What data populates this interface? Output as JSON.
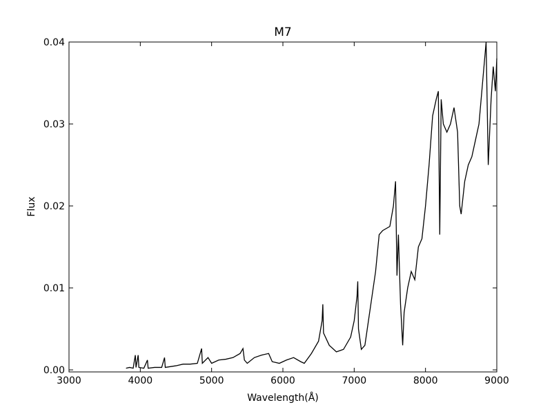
{
  "chart_data": {
    "type": "line",
    "title": "M7",
    "x_label": "Wavelength(Å)",
    "y_label": "Flux",
    "x": [
      3800,
      3850,
      3900,
      3930,
      3940,
      3970,
      3980,
      4050,
      4100,
      4110,
      4200,
      4300,
      4340,
      4350,
      4500,
      4600,
      4700,
      4800,
      4860,
      4870,
      4950,
      5000,
      5100,
      5200,
      5300,
      5400,
      5440,
      5460,
      5500,
      5600,
      5700,
      5800,
      5850,
      5950,
      6050,
      6150,
      6250,
      6300,
      6400,
      6500,
      6550,
      6560,
      6570,
      6650,
      6750,
      6850,
      6950,
      7000,
      7040,
      7050,
      7060,
      7100,
      7150,
      7200,
      7250,
      7300,
      7350,
      7400,
      7500,
      7550,
      7580,
      7600,
      7620,
      7650,
      7680,
      7700,
      7750,
      7800,
      7850,
      7900,
      7950,
      8000,
      8050,
      8100,
      8150,
      8180,
      8200,
      8220,
      8250,
      8300,
      8350,
      8400,
      8450,
      8480,
      8500,
      8550,
      8600,
      8650,
      8700,
      8750,
      8800,
      8850,
      8880,
      8920,
      8950,
      8980,
      9000
    ],
    "series": [
      {
        "name": "M7",
        "color": "#000000",
        "values": [
          0.0002,
          0.0003,
          0.0002,
          0.0018,
          0.0003,
          0.0018,
          0.0003,
          0.0002,
          0.0012,
          0.0002,
          0.0003,
          0.0003,
          0.0015,
          0.0003,
          0.0005,
          0.0007,
          0.0007,
          0.0008,
          0.0026,
          0.0008,
          0.0015,
          0.0008,
          0.0012,
          0.0013,
          0.0015,
          0.002,
          0.0026,
          0.0012,
          0.0008,
          0.0015,
          0.0018,
          0.002,
          0.001,
          0.0008,
          0.0012,
          0.0015,
          0.001,
          0.0008,
          0.002,
          0.0035,
          0.006,
          0.008,
          0.0045,
          0.003,
          0.0022,
          0.0025,
          0.004,
          0.006,
          0.009,
          0.0108,
          0.005,
          0.0025,
          0.003,
          0.006,
          0.009,
          0.012,
          0.0165,
          0.017,
          0.0175,
          0.02,
          0.023,
          0.0115,
          0.0165,
          0.008,
          0.003,
          0.007,
          0.01,
          0.012,
          0.011,
          0.015,
          0.016,
          0.02,
          0.025,
          0.031,
          0.033,
          0.034,
          0.0165,
          0.033,
          0.03,
          0.029,
          0.03,
          0.032,
          0.029,
          0.02,
          0.019,
          0.023,
          0.025,
          0.026,
          0.028,
          0.03,
          0.035,
          0.04,
          0.025,
          0.033,
          0.037,
          0.034,
          0.038
        ]
      }
    ],
    "xlim": [
      3000,
      9000
    ],
    "ylim": [
      -0.00025,
      0.04
    ],
    "xticks": [
      3000,
      4000,
      5000,
      6000,
      7000,
      8000,
      9000
    ],
    "yticks": [
      {
        "value": 0,
        "label": "0.00"
      },
      0.01,
      0.02,
      0.03,
      0.04
    ]
  }
}
